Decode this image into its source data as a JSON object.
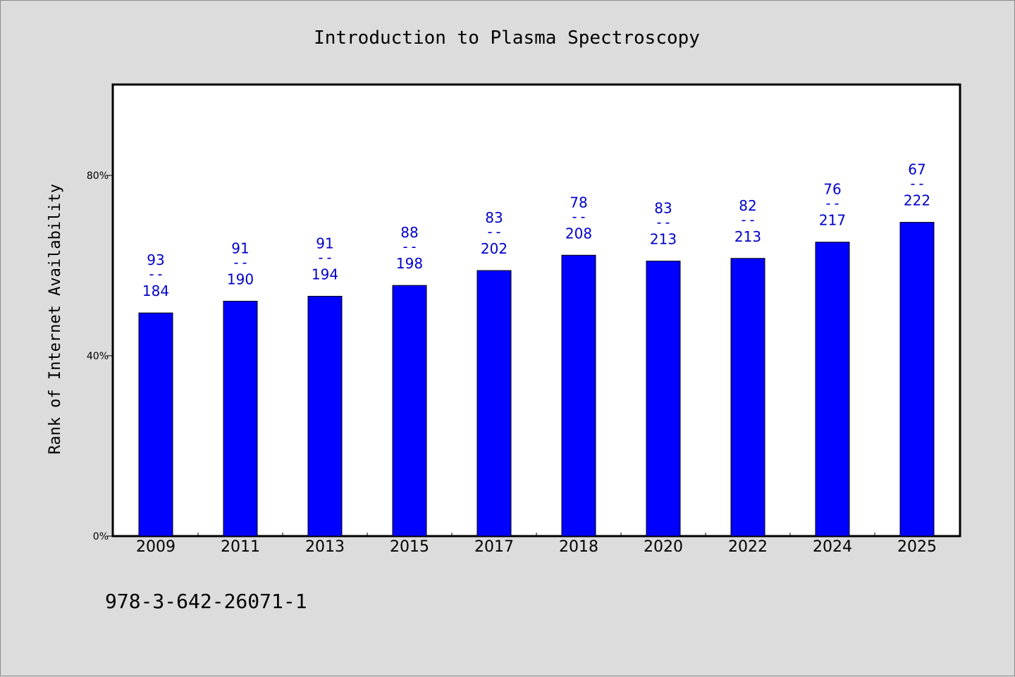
{
  "chart_data": {
    "type": "bar",
    "title": "Introduction to Plasma Spectroscopy",
    "ylabel": "Rank of Internet Availability",
    "xlabel": "",
    "ylim": [
      0,
      100
    ],
    "y_ticks": [
      0,
      40,
      80
    ],
    "y_tick_labels": [
      "0%",
      "40%",
      "80%"
    ],
    "grid": false,
    "categories": [
      "2009",
      "2011",
      "2013",
      "2015",
      "2017",
      "2018",
      "2020",
      "2022",
      "2024",
      "2025"
    ],
    "values": [
      49.5,
      52.1,
      53.2,
      55.6,
      58.9,
      62.3,
      61.0,
      61.6,
      65.2,
      69.6
    ],
    "bar_labels": [
      {
        "top": "93",
        "sep": "--",
        "bottom": "184"
      },
      {
        "top": "91",
        "sep": "--",
        "bottom": "190"
      },
      {
        "top": "91",
        "sep": "--",
        "bottom": "194"
      },
      {
        "top": "88",
        "sep": "--",
        "bottom": "198"
      },
      {
        "top": "83",
        "sep": "--",
        "bottom": "202"
      },
      {
        "top": "78",
        "sep": "--",
        "bottom": "208"
      },
      {
        "top": "83",
        "sep": "--",
        "bottom": "213"
      },
      {
        "top": "82",
        "sep": "--",
        "bottom": "213"
      },
      {
        "top": "76",
        "sep": "--",
        "bottom": "217"
      },
      {
        "top": "67",
        "sep": "--",
        "bottom": "222"
      }
    ],
    "bar_color": "#0000ff",
    "label_color": "#0000cc"
  },
  "footer": {
    "isbn": "978-3-642-26071-1"
  }
}
